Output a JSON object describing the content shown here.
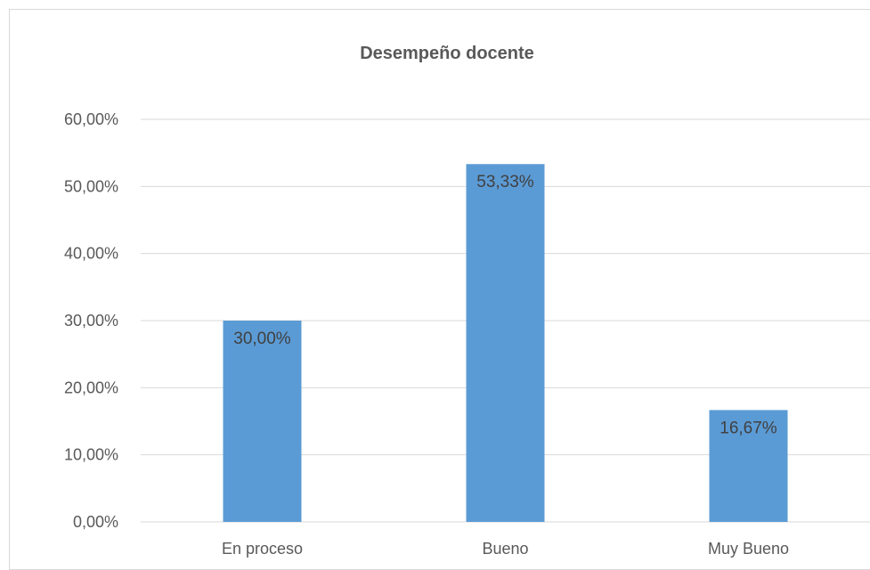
{
  "chart_data": {
    "type": "bar",
    "title": "Desempeño docente",
    "categories": [
      "En proceso",
      "Bueno",
      "Muy Bueno"
    ],
    "values": [
      30.0,
      53.33,
      16.67
    ],
    "value_labels": [
      "30,00%",
      "53,33%",
      "16,67%"
    ],
    "ylim": [
      0,
      60
    ],
    "yticks": [
      "0,00%",
      "10,00%",
      "20,00%",
      "30,00%",
      "40,00%",
      "50,00%",
      "60,00%"
    ],
    "grid": true,
    "bar_color": "#5b9bd5",
    "grid_color": "#d9d9d9",
    "text_color": "#595959"
  }
}
